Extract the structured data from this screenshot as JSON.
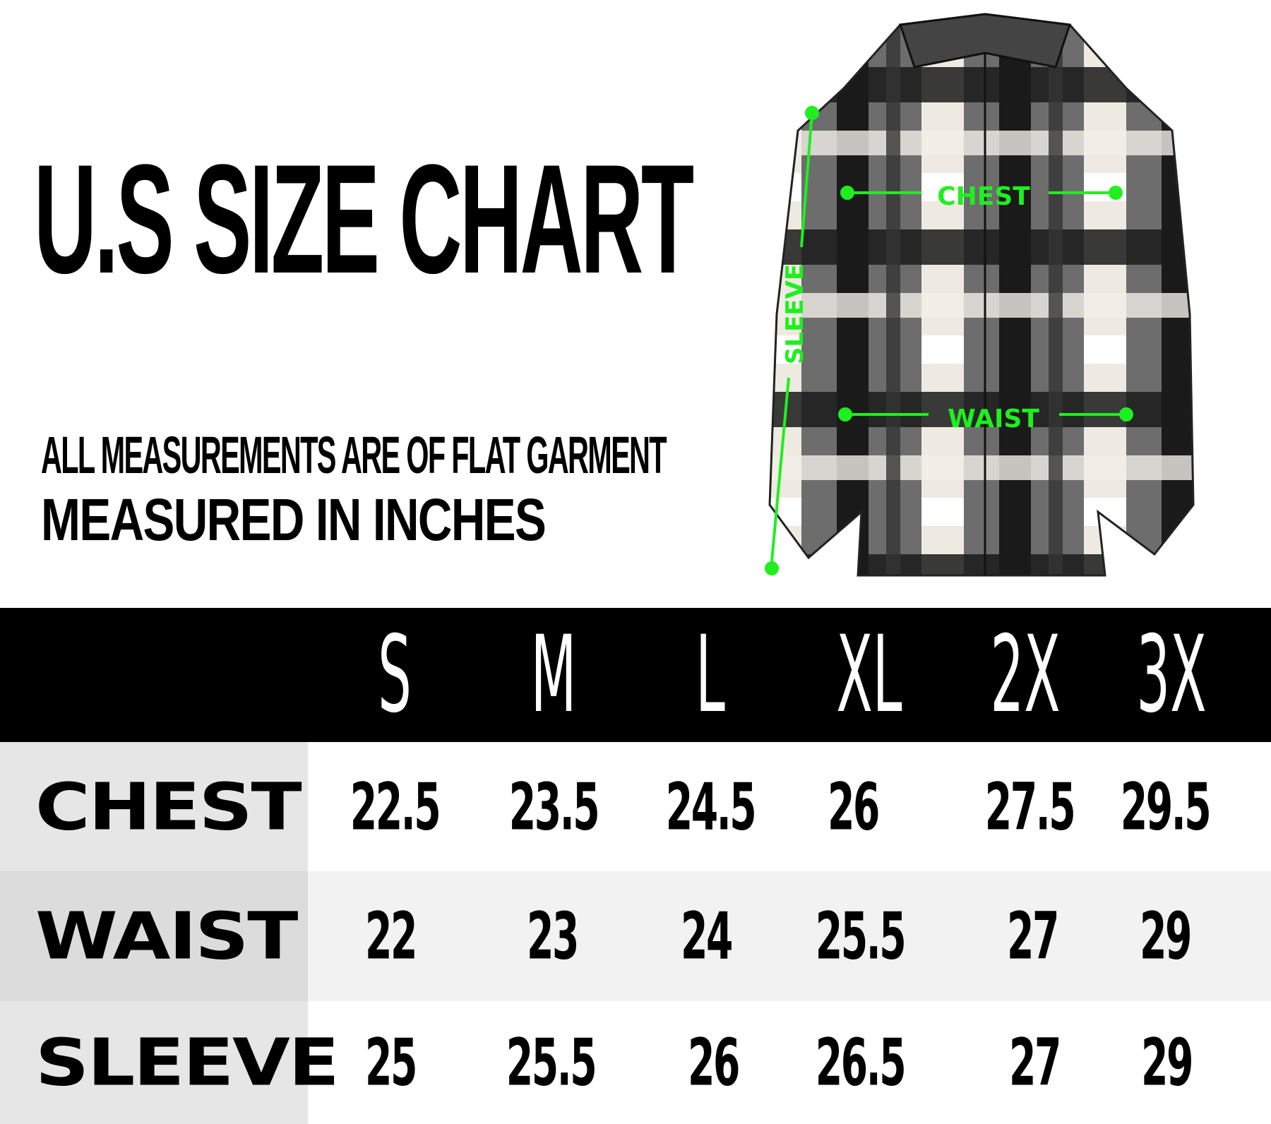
{
  "title": "U.S SIZE CHART",
  "subtitle_line1": "ALL MEASUREMENTS ARE OF FLAT GARMENT",
  "subtitle_line2": "MEASURED IN INCHES",
  "diagram": {
    "chest_label": "CHEST",
    "waist_label": "WAIST",
    "sleeve_label": "SLEEVE",
    "accent_color": "#1fef1f"
  },
  "sizes": [
    "S",
    "M",
    "L",
    "XL",
    "2X",
    "3X"
  ],
  "rows": [
    {
      "label": "CHEST",
      "values": [
        "22.5",
        "23.5",
        "24.5",
        "26",
        "27.5",
        "29.5"
      ]
    },
    {
      "label": "WAIST",
      "values": [
        "22",
        "23",
        "24",
        "25.5",
        "27",
        "29"
      ]
    },
    {
      "label": "SLEEVE",
      "values": [
        "25",
        "25.5",
        "26",
        "26.5",
        "27",
        "29"
      ]
    }
  ]
}
